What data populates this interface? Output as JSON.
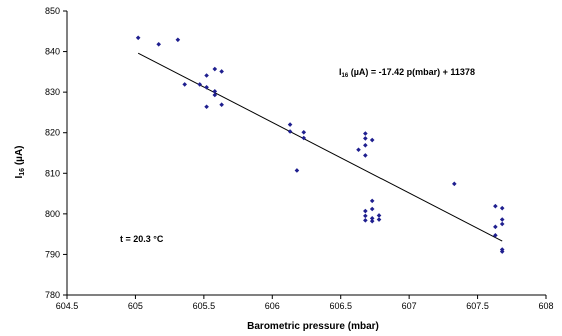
{
  "chart_data": {
    "type": "scatter",
    "title": "",
    "xlabel": "Barometric pressure (mbar)",
    "ylabel": {
      "main": "I",
      "sub": "16",
      "rest": " (µA)"
    },
    "xlim": [
      604.5,
      608
    ],
    "ylim": [
      780,
      850
    ],
    "xticks": [
      604.5,
      605,
      605.5,
      606,
      606.5,
      607,
      607.5,
      608
    ],
    "yticks": [
      780,
      790,
      800,
      810,
      820,
      830,
      840,
      850
    ],
    "grid": false,
    "legend": "none",
    "marker_color": "#1f1f8f",
    "series": [
      {
        "points": [
          [
            605.02,
            843.4
          ],
          [
            605.17,
            841.8
          ],
          [
            605.31,
            842.9
          ],
          [
            605.36,
            831.9
          ],
          [
            605.47,
            831.9
          ],
          [
            605.52,
            834.1
          ],
          [
            605.52,
            831.2
          ],
          [
            605.52,
            826.4
          ],
          [
            605.58,
            835.7
          ],
          [
            605.58,
            830.2
          ],
          [
            605.58,
            829.3
          ],
          [
            605.63,
            835.1
          ],
          [
            605.63,
            826.9
          ],
          [
            606.13,
            822.0
          ],
          [
            606.13,
            820.3
          ],
          [
            606.18,
            810.7
          ],
          [
            606.23,
            820.1
          ],
          [
            606.23,
            818.7
          ],
          [
            606.63,
            815.8
          ],
          [
            606.68,
            819.8
          ],
          [
            606.68,
            818.6
          ],
          [
            606.68,
            816.9
          ],
          [
            606.68,
            814.4
          ],
          [
            606.68,
            800.7
          ],
          [
            606.68,
            799.5
          ],
          [
            606.68,
            798.4
          ],
          [
            606.73,
            818.2
          ],
          [
            606.73,
            803.2
          ],
          [
            606.73,
            801.2
          ],
          [
            606.73,
            798.9
          ],
          [
            606.73,
            798.2
          ],
          [
            606.78,
            799.6
          ],
          [
            606.78,
            798.6
          ],
          [
            607.33,
            807.4
          ],
          [
            607.63,
            801.9
          ],
          [
            607.63,
            796.8
          ],
          [
            607.63,
            794.7
          ],
          [
            607.68,
            801.4
          ],
          [
            607.68,
            798.6
          ],
          [
            607.68,
            797.5
          ],
          [
            607.68,
            791.2
          ],
          [
            607.68,
            790.7
          ]
        ]
      }
    ],
    "trendline": {
      "x": [
        605.02,
        607.68
      ],
      "y": [
        839.6,
        793.3
      ]
    },
    "annotations": {
      "equation": {
        "main": "I",
        "sub": "16",
        "rest": " (µA) = -17.42 p(mbar) + 11378"
      },
      "temperature": "t = 20.3 °C"
    }
  }
}
